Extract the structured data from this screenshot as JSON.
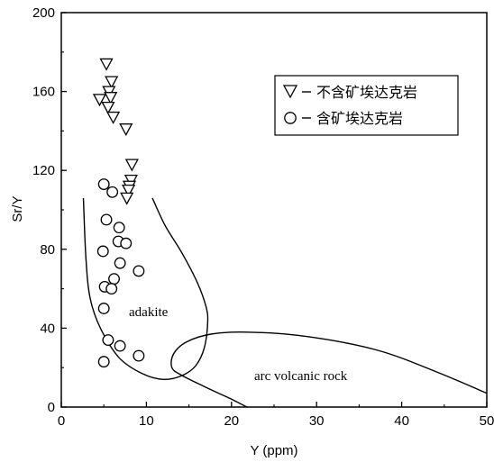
{
  "chart_data": {
    "type": "scatter",
    "title": "",
    "xlabel": "Y (ppm)",
    "ylabel": "Sr/Y",
    "xlim": [
      0,
      50
    ],
    "ylim": [
      0,
      200
    ],
    "x_ticks": [
      "0",
      "10",
      "20",
      "30",
      "40",
      "50"
    ],
    "y_ticks": [
      "0",
      "40",
      "80",
      "120",
      "160",
      "200"
    ],
    "grid": false,
    "legend_position": "top-right",
    "series": [
      {
        "name": "不含矿埃达克岩",
        "marker": "triangle-down",
        "points": [
          [
            5.3,
            174
          ],
          [
            5.9,
            165
          ],
          [
            5.6,
            160
          ],
          [
            5.8,
            157
          ],
          [
            4.5,
            156
          ],
          [
            5.5,
            152
          ],
          [
            6.1,
            147
          ],
          [
            7.6,
            141
          ],
          [
            8.3,
            123
          ],
          [
            8.2,
            115
          ],
          [
            8.0,
            112
          ],
          [
            7.9,
            110
          ],
          [
            7.7,
            106
          ]
        ]
      },
      {
        "name": "含矿埃达克岩",
        "marker": "circle",
        "points": [
          [
            5.0,
            113
          ],
          [
            6.0,
            109
          ],
          [
            5.3,
            95
          ],
          [
            6.8,
            91
          ],
          [
            6.7,
            84
          ],
          [
            7.6,
            83
          ],
          [
            4.9,
            79
          ],
          [
            6.9,
            73
          ],
          [
            9.1,
            69
          ],
          [
            6.2,
            65
          ],
          [
            5.1,
            61
          ],
          [
            5.9,
            60
          ],
          [
            5.0,
            50
          ],
          [
            5.5,
            34
          ],
          [
            6.9,
            31
          ],
          [
            9.1,
            26
          ],
          [
            5.0,
            23
          ]
        ]
      }
    ],
    "regions": [
      {
        "label": "adakite",
        "boundary": [
          [
            10.7,
            106
          ],
          [
            12.2,
            92
          ],
          [
            14.2,
            78
          ],
          [
            16.0,
            63
          ],
          [
            17.0,
            51
          ],
          [
            17.2,
            43
          ],
          [
            16.8,
            30
          ],
          [
            15.8,
            21
          ],
          [
            14.2,
            16
          ],
          [
            12.0,
            14
          ],
          [
            9.5,
            17
          ],
          [
            6.8,
            25
          ],
          [
            4.6,
            40
          ],
          [
            3.4,
            55
          ],
          [
            2.9,
            75
          ],
          [
            2.6,
            106
          ]
        ]
      },
      {
        "label": "arc volcanic rock",
        "boundary": [
          [
            21.8,
            0
          ],
          [
            20.0,
            4
          ],
          [
            17.0,
            10
          ],
          [
            14.2,
            16
          ],
          [
            13.0,
            20
          ],
          [
            13.2,
            27
          ],
          [
            14.7,
            33
          ],
          [
            17.6,
            37
          ],
          [
            21.8,
            38
          ],
          [
            28.5,
            36
          ],
          [
            37.0,
            29
          ],
          [
            44.0,
            18
          ],
          [
            50.0,
            7
          ]
        ]
      }
    ]
  }
}
